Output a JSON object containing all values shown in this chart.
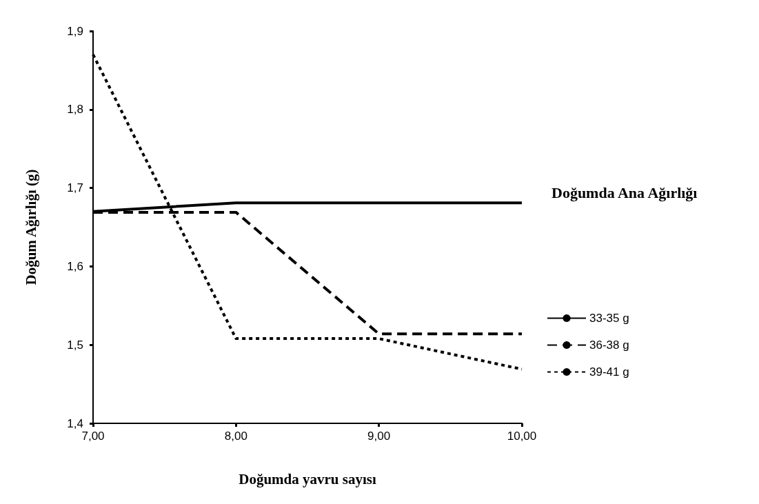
{
  "chart_data": {
    "type": "line",
    "xlabel": "Doğumda yavru sayısı",
    "ylabel": "Doğum Ağırlığı (g)",
    "legend_title": "Doğumda Ana Ağırlığı",
    "x": [
      7,
      8,
      9,
      10
    ],
    "series": [
      {
        "name": "33-35 g",
        "color": "#000000",
        "line_style": "solid",
        "values": [
          1.67,
          1.681,
          1.681,
          1.681
        ]
      },
      {
        "name": "36-38 g",
        "color": "#000000",
        "line_style": "dashed",
        "values": [
          1.669,
          1.669,
          1.514,
          1.514
        ]
      },
      {
        "name": "39-41 g",
        "color": "#000000",
        "line_style": "dotted",
        "values": [
          1.87,
          1.508,
          1.508,
          1.469
        ]
      }
    ],
    "xlim": [
      7,
      10
    ],
    "xticks": [
      {
        "value": 7,
        "label": "7,00"
      },
      {
        "value": 8,
        "label": "8,00"
      },
      {
        "value": 9,
        "label": "9,00"
      },
      {
        "value": 10,
        "label": "10,00"
      }
    ],
    "ylim": [
      1.4,
      1.9
    ],
    "yticks": [
      {
        "value": 1.4,
        "label": "1,4"
      },
      {
        "value": 1.5,
        "label": "1,5"
      },
      {
        "value": 1.6,
        "label": "1,6"
      },
      {
        "value": 1.7,
        "label": "1,7"
      },
      {
        "value": 1.8,
        "label": "1,8"
      },
      {
        "value": 1.9,
        "label": "1,9"
      }
    ],
    "grid": false,
    "legend": "right",
    "marker": "none"
  }
}
